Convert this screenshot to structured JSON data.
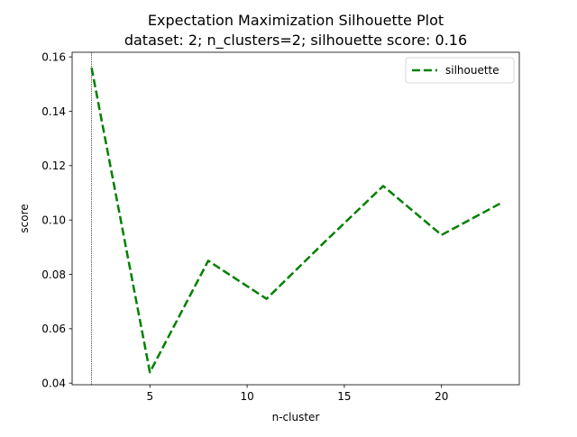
{
  "chart_data": {
    "type": "line",
    "title": "Expectation Maximization Silhouette Plot",
    "subtitle": "dataset: 2; n_clusters=2; silhouette score: 0.16",
    "xlabel": "n-cluster",
    "ylabel": "score",
    "xlim": [
      1.0,
      24.0
    ],
    "ylim": [
      0.0394,
      0.1617
    ],
    "x_ticks": [
      5,
      10,
      15,
      20
    ],
    "y_ticks": [
      0.04,
      0.06,
      0.08,
      0.1,
      0.12,
      0.14,
      0.16
    ],
    "y_tick_labels": [
      "0.04",
      "0.06",
      "0.08",
      "0.10",
      "0.12",
      "0.14",
      "0.16"
    ],
    "grid": false,
    "legend_position": "upper right",
    "vline_x": 2,
    "series": [
      {
        "name": "silhouette",
        "color": "#008000",
        "line_style": "dashed",
        "x": [
          2,
          5,
          8,
          11,
          14,
          17,
          20,
          23
        ],
        "values": [
          0.156,
          0.044,
          0.085,
          0.071,
          0.092,
          0.1125,
          0.0945,
          0.106
        ]
      }
    ]
  }
}
